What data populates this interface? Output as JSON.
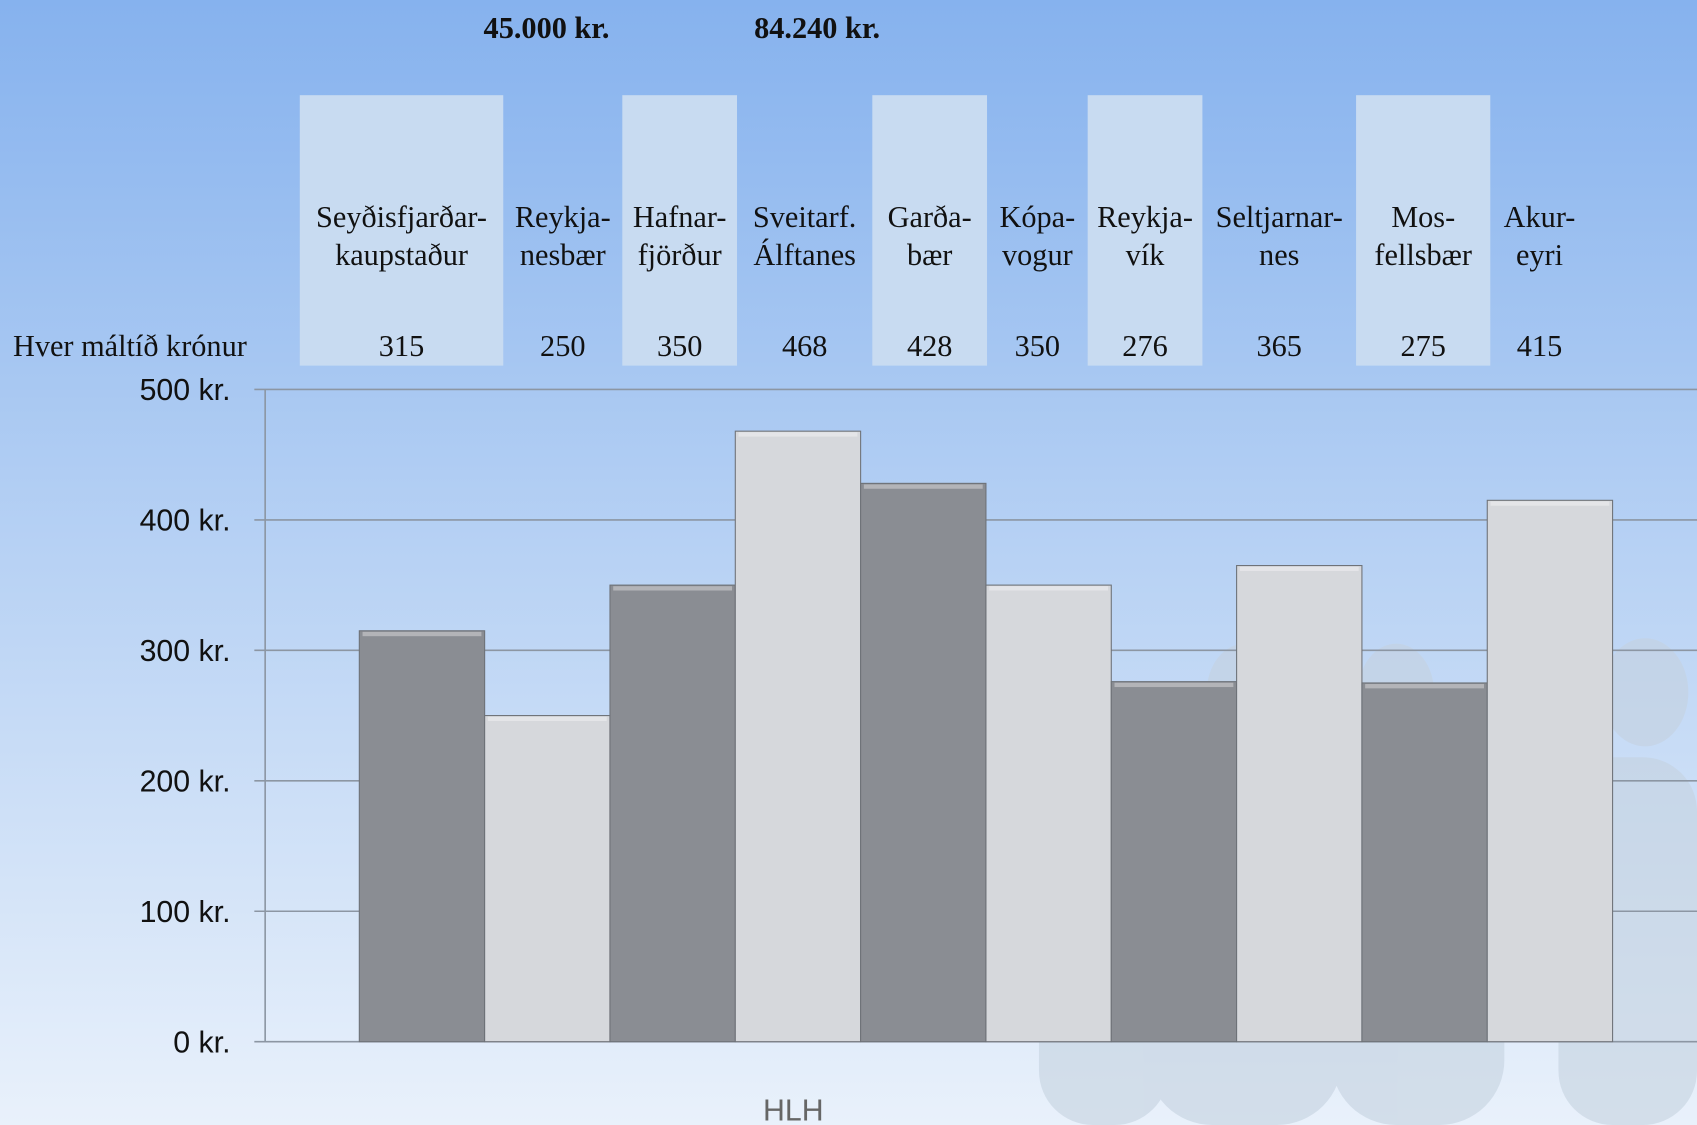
{
  "chart_data": {
    "type": "bar",
    "annotations": [
      "45.000 kr.",
      "84.240 kr."
    ],
    "row_label": "Hver máltíð krónur",
    "categories": [
      "Seyðisfjarðar-\nkaupstaður",
      "Reykja-\nnesbær",
      "Hafnar-\nfjörður",
      "Sveitarf.\nÁlftanes",
      "Garða-\nbær",
      "Kópa-\nvogur",
      "Reykja-\nvík",
      "Seltjarnar-\nnes",
      "Mos-\nfellsbær",
      "Akur-\neyri"
    ],
    "values": [
      315,
      250,
      350,
      468,
      428,
      350,
      276,
      365,
      275,
      415
    ],
    "colors": [
      "#8a8d93",
      "#d6d8dc"
    ],
    "ylim": [
      0,
      500
    ],
    "yticks": [
      {
        "value": 0,
        "label": "0 kr."
      },
      {
        "value": 100,
        "label": "100 kr."
      },
      {
        "value": 200,
        "label": "200 kr."
      },
      {
        "value": 300,
        "label": "300 kr."
      },
      {
        "value": 400,
        "label": "400 kr."
      },
      {
        "value": 500,
        "label": "500 kr."
      }
    ],
    "grid": true,
    "footer": "HLH"
  }
}
